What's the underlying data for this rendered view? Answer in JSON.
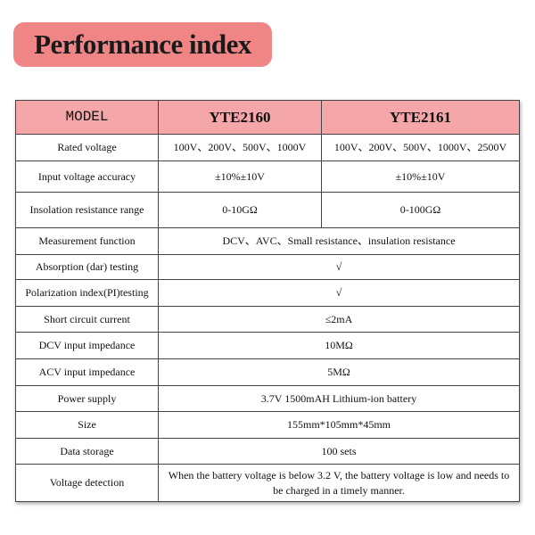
{
  "header": {
    "title": "Performance index"
  },
  "table": {
    "columns": [
      "MODEL",
      "YTE2160",
      "YTE2161"
    ],
    "rows": [
      [
        "Rated voltage",
        "100V、200V、500V、1000V",
        "100V、200V、500V、1000V、2500V"
      ],
      [
        "Input voltage accuracy",
        "±10%±10V",
        "±10%±10V"
      ],
      [
        "Insolation resistance range",
        "0-10GΩ",
        "0-100GΩ"
      ],
      [
        "Measurement function",
        "DCV、AVC、Small resistance、insulation resistance"
      ],
      [
        "Absorption (dar) testing",
        "√"
      ],
      [
        "Polarization index(PI)testing",
        "√"
      ],
      [
        "Short circuit current",
        "≤2mA"
      ],
      [
        "DCV input impedance",
        "10MΩ"
      ],
      [
        "ACV input impedance",
        "5MΩ"
      ],
      [
        "Power supply",
        "3.7V 1500mAH  Lithium-ion battery"
      ],
      [
        "Size",
        "155mm*105mm*45mm"
      ],
      [
        "Data storage",
        "100 sets"
      ],
      [
        "Voltage detection",
        "When the battery voltage is below 3.2 V, the battery voltage is low and needs to be charged in a timely manner."
      ]
    ]
  }
}
